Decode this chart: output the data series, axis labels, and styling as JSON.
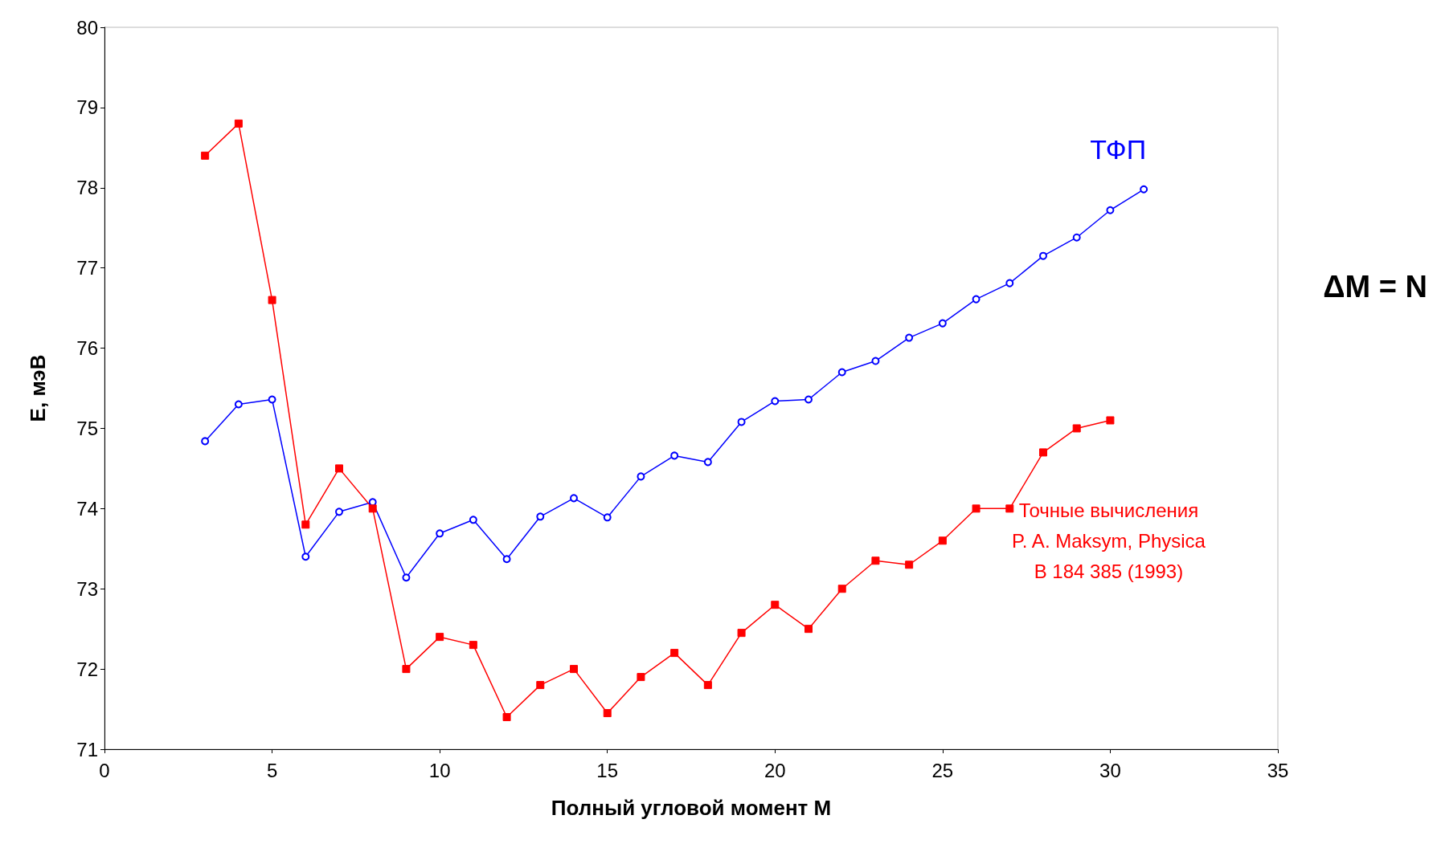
{
  "chart_data": {
    "type": "line",
    "xlabel": "Полный угловой момент M",
    "ylabel": "E, мэВ",
    "xlim": [
      0,
      35
    ],
    "xticks": [
      0,
      5,
      10,
      15,
      20,
      25,
      30,
      35
    ],
    "ylim": [
      71,
      80
    ],
    "yticks": [
      71,
      72,
      73,
      74,
      75,
      76,
      77,
      78,
      79,
      80
    ],
    "grid": false,
    "legend": false,
    "annotations": [
      "ΔM = N"
    ],
    "series": [
      {
        "name": "ТФП",
        "color": "#0000ff",
        "marker": "circle",
        "x": [
          3,
          4,
          5,
          6,
          7,
          8,
          9,
          10,
          11,
          12,
          13,
          14,
          15,
          16,
          17,
          18,
          19,
          20,
          21,
          22,
          23,
          24,
          25,
          26,
          27,
          28,
          29,
          30,
          31
        ],
        "values": [
          74.84,
          75.3,
          75.36,
          73.4,
          73.96,
          74.08,
          73.14,
          73.69,
          73.86,
          73.37,
          73.9,
          74.13,
          73.89,
          74.4,
          74.66,
          74.58,
          75.08,
          75.34,
          75.36,
          75.7,
          75.84,
          76.13,
          76.31,
          76.61,
          76.81,
          77.15,
          77.38,
          77.72,
          77.98
        ]
      },
      {
        "name": "Точные вычисления\nP. A. Maksym, Physica\nB 184 385 (1993)",
        "color": "#ff0000",
        "marker": "square",
        "x": [
          3,
          4,
          5,
          6,
          7,
          8,
          9,
          10,
          11,
          12,
          13,
          14,
          15,
          16,
          17,
          18,
          19,
          20,
          21,
          22,
          23,
          24,
          25,
          26,
          27,
          28,
          29,
          30
        ],
        "values": [
          78.4,
          78.8,
          76.6,
          73.8,
          74.5,
          74.0,
          72.0,
          72.4,
          72.3,
          71.4,
          71.8,
          72.0,
          71.45,
          71.9,
          72.2,
          71.8,
          72.45,
          72.8,
          72.5,
          73.0,
          73.35,
          73.3,
          73.6,
          74.0,
          74.0,
          74.7,
          75.0,
          75.1
        ]
      }
    ]
  }
}
